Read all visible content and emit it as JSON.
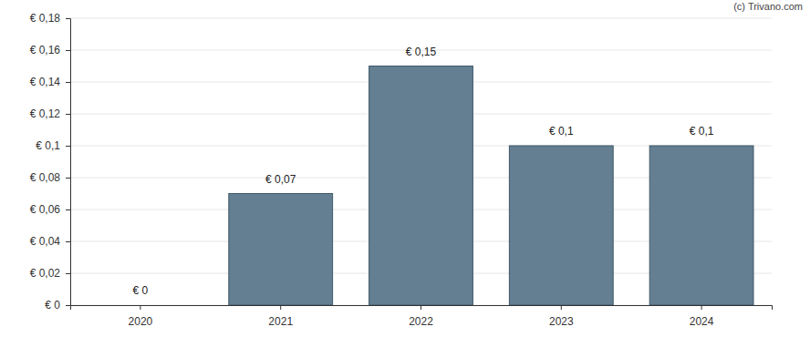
{
  "chart_data": {
    "type": "bar",
    "categories": [
      "2020",
      "2021",
      "2022",
      "2023",
      "2024"
    ],
    "values": [
      0,
      0.07,
      0.15,
      0.1,
      0.1
    ],
    "value_labels": [
      "€ 0",
      "€ 0,07",
      "€ 0,15",
      "€ 0,1",
      "€ 0,1"
    ],
    "data_labels": true,
    "color": "#647f91",
    "ylim": [
      0,
      0.18
    ],
    "yticks": [
      {
        "value": 0,
        "label": "€ 0"
      },
      {
        "value": 0.02,
        "label": "€ 0,02"
      },
      {
        "value": 0.04,
        "label": "€ 0,04"
      },
      {
        "value": 0.06,
        "label": "€ 0,06"
      },
      {
        "value": 0.08,
        "label": "€ 0,08"
      },
      {
        "value": 0.1,
        "label": "€ 0,1"
      },
      {
        "value": 0.12,
        "label": "€ 0,12"
      },
      {
        "value": 0.14,
        "label": "€ 0,14"
      },
      {
        "value": 0.16,
        "label": "€ 0,16"
      },
      {
        "value": 0.18,
        "label": "€ 0,18"
      }
    ],
    "grid": true,
    "annotations": [
      "(c) Trivano.com"
    ]
  }
}
